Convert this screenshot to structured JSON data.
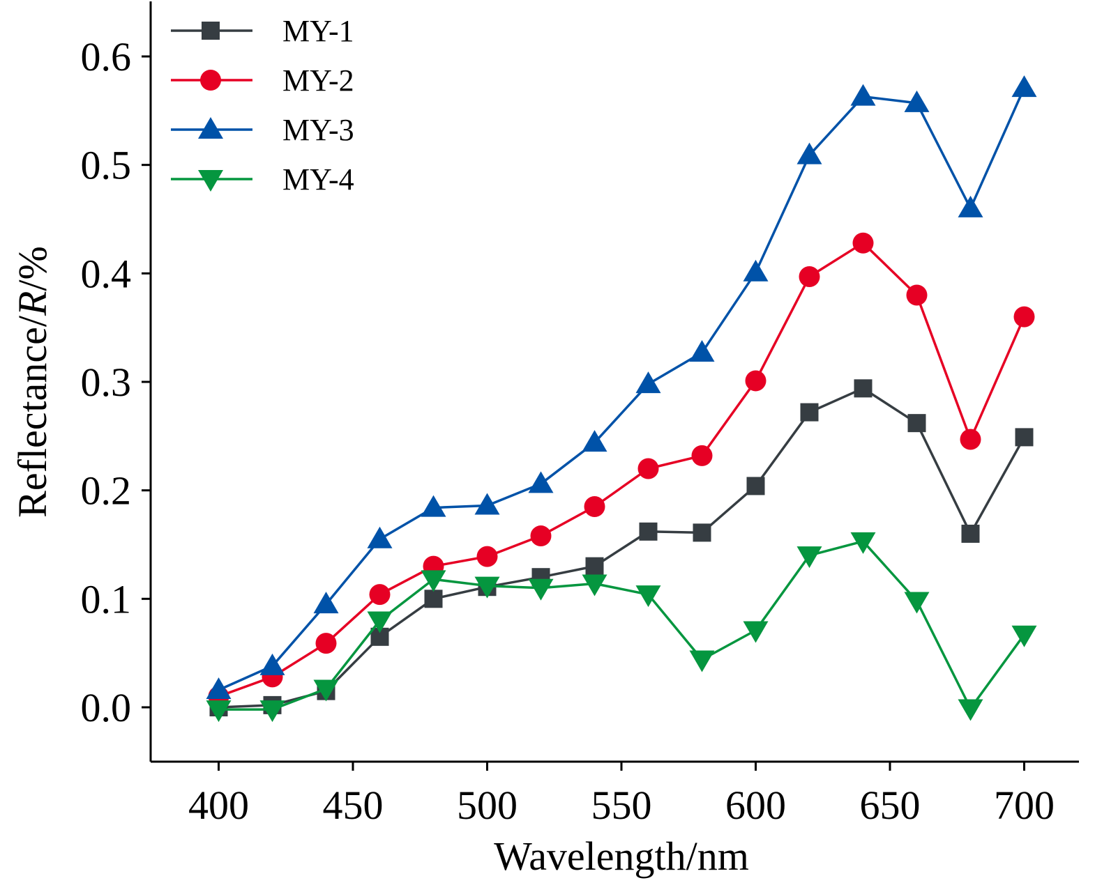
{
  "chart_data": {
    "type": "line",
    "title": "",
    "xlabel": "Wavelength/nm",
    "ylabel_prefix": "Reflectance/",
    "ylabel_italic": "R",
    "ylabel_suffix": "/%",
    "xlim": [
      375,
      725
    ],
    "ylim": [
      -0.05,
      0.65
    ],
    "x_ticks": [
      400,
      450,
      500,
      550,
      600,
      650,
      700
    ],
    "x_tick_labels": [
      "400",
      "450",
      "500",
      "550",
      "600",
      "650",
      "700"
    ],
    "y_ticks": [
      0.0,
      0.1,
      0.2,
      0.3,
      0.4,
      0.5,
      0.6
    ],
    "y_tick_labels": [
      "0.0",
      "0.1",
      "0.2",
      "0.3",
      "0.4",
      "0.5",
      "0.6"
    ],
    "grid": false,
    "legend_position": "top-left",
    "x": [
      400,
      420,
      440,
      460,
      480,
      500,
      520,
      540,
      560,
      580,
      600,
      620,
      640,
      660,
      680,
      700
    ],
    "series": [
      {
        "name": "MY-1",
        "marker": "square",
        "color": "#363d42",
        "values": [
          0.0,
          0.002,
          0.015,
          0.065,
          0.1,
          0.111,
          0.12,
          0.13,
          0.162,
          0.161,
          0.204,
          0.272,
          0.294,
          0.262,
          0.16,
          0.249
        ]
      },
      {
        "name": "MY-2",
        "marker": "circle",
        "color": "#e60024",
        "values": [
          0.01,
          0.028,
          0.059,
          0.104,
          0.13,
          0.139,
          0.158,
          0.185,
          0.22,
          0.232,
          0.301,
          0.397,
          0.428,
          0.38,
          0.247,
          0.36
        ]
      },
      {
        "name": "MY-3",
        "marker": "triangle-up",
        "color": "#0052a8",
        "values": [
          0.016,
          0.038,
          0.095,
          0.155,
          0.184,
          0.186,
          0.206,
          0.244,
          0.298,
          0.327,
          0.401,
          0.509,
          0.563,
          0.557,
          0.46,
          0.571
        ]
      },
      {
        "name": "MY-4",
        "marker": "triangle-down",
        "color": "#05963f",
        "values": [
          -0.002,
          -0.002,
          0.017,
          0.08,
          0.118,
          0.112,
          0.11,
          0.114,
          0.104,
          0.044,
          0.071,
          0.14,
          0.153,
          0.098,
          -0.001,
          0.067
        ]
      }
    ]
  }
}
